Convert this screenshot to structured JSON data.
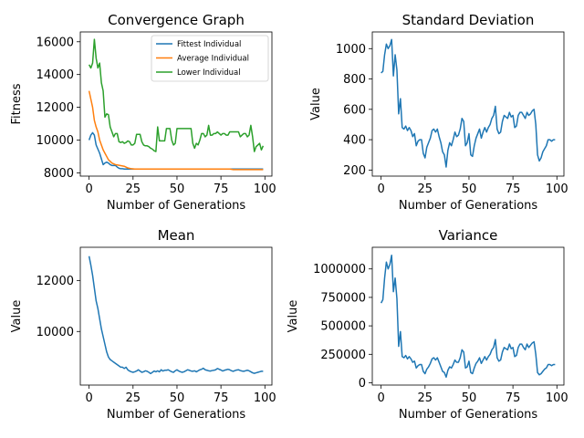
{
  "chart_data": [
    {
      "type": "line",
      "title": "Convergence Graph",
      "xlabel": "Number of Generations",
      "ylabel": "Fitness",
      "xlim": [
        -5,
        104
      ],
      "ylim": [
        7800,
        16600
      ],
      "xticks": [
        0,
        25,
        50,
        75,
        100
      ],
      "yticks": [
        8000,
        10000,
        12000,
        14000,
        16000
      ],
      "ytick_labels": [
        "8000",
        "10000",
        "12000",
        "14000",
        "16000"
      ],
      "legend_position": "top-right",
      "grid": false,
      "series": [
        {
          "name": "Fittest Individual",
          "color": "#1f77b4",
          "x": [
            0,
            1,
            2,
            3,
            4,
            5,
            6,
            7,
            8,
            9,
            10,
            11,
            12,
            13,
            14,
            15,
            16,
            17,
            18,
            19,
            20,
            22,
            25,
            30,
            40,
            50,
            60,
            70,
            80,
            90,
            99
          ],
          "values": [
            10000,
            10300,
            10450,
            10300,
            9700,
            9450,
            9200,
            8850,
            8500,
            8600,
            8650,
            8600,
            8500,
            8450,
            8450,
            8450,
            8350,
            8280,
            8250,
            8250,
            8230,
            8230,
            8230,
            8230,
            8230,
            8230,
            8230,
            8230,
            8230,
            8230,
            8230
          ]
        },
        {
          "name": "Average Individual",
          "color": "#ff7f0e",
          "x": [
            0,
            1,
            2,
            3,
            4,
            5,
            6,
            7,
            8,
            9,
            10,
            11,
            12,
            13,
            14,
            15,
            16,
            17,
            18,
            19,
            20,
            22,
            24,
            26,
            30,
            40,
            50,
            60,
            70,
            80,
            82,
            85,
            90,
            99
          ],
          "values": [
            13000,
            12500,
            12000,
            11200,
            10800,
            10500,
            10000,
            9700,
            9400,
            9200,
            9000,
            8800,
            8700,
            8600,
            8550,
            8500,
            8480,
            8460,
            8440,
            8420,
            8400,
            8300,
            8250,
            8230,
            8230,
            8230,
            8230,
            8230,
            8230,
            8230,
            8200,
            8200,
            8200,
            8200
          ]
        },
        {
          "name": "Lower Individual",
          "color": "#2ca02c",
          "x": [
            0,
            1,
            2,
            3,
            4,
            5,
            6,
            7,
            8,
            9,
            10,
            11,
            12,
            13,
            14,
            15,
            16,
            17,
            18,
            19,
            20,
            21,
            22,
            23,
            24,
            25,
            26,
            27,
            28,
            29,
            30,
            31,
            32,
            33,
            34,
            35,
            36,
            37,
            38,
            39,
            40,
            41,
            42,
            43,
            44,
            45,
            46,
            47,
            48,
            49,
            50,
            51,
            52,
            53,
            54,
            55,
            56,
            57,
            58,
            59,
            60,
            61,
            62,
            63,
            64,
            65,
            66,
            67,
            68,
            69,
            70,
            71,
            72,
            73,
            74,
            75,
            76,
            77,
            78,
            79,
            80,
            81,
            82,
            83,
            84,
            85,
            86,
            87,
            88,
            89,
            90,
            91,
            92,
            93,
            94,
            95,
            96,
            97,
            98,
            99
          ],
          "values": [
            14600,
            14400,
            14700,
            16150,
            15000,
            14400,
            14700,
            13500,
            13000,
            11400,
            11600,
            11550,
            10800,
            10500,
            10200,
            10400,
            10400,
            9900,
            9850,
            9900,
            9800,
            9850,
            9950,
            9900,
            9700,
            9700,
            9800,
            10350,
            10350,
            10350,
            9900,
            9700,
            9650,
            9650,
            9600,
            9500,
            9450,
            9350,
            9300,
            10800,
            9950,
            9950,
            9950,
            9950,
            10700,
            10700,
            10700,
            10000,
            9700,
            9800,
            10700,
            10700,
            10700,
            10700,
            10700,
            10700,
            10700,
            10700,
            10700,
            9800,
            9500,
            9800,
            9700,
            10000,
            10400,
            10400,
            10200,
            10300,
            10900,
            10300,
            10300,
            10400,
            10400,
            10500,
            10400,
            10300,
            10400,
            10400,
            10300,
            10300,
            10500,
            10500,
            10500,
            10500,
            10500,
            10500,
            10200,
            10300,
            10400,
            10400,
            10200,
            10300,
            10900,
            10200,
            9300,
            9600,
            9700,
            9800,
            9400,
            9650
          ]
        }
      ]
    },
    {
      "type": "line",
      "title": "Standard Deviation",
      "xlabel": "Number of Generations",
      "ylabel": "Value",
      "xlim": [
        -5,
        104
      ],
      "ylim": [
        160,
        1110
      ],
      "xticks": [
        0,
        25,
        50,
        75,
        100
      ],
      "yticks": [
        200,
        400,
        600,
        800,
        1000
      ],
      "ytick_labels": [
        "200",
        "400",
        "600",
        "800",
        "1000"
      ],
      "grid": false,
      "series": [
        {
          "color": "#1f77b4",
          "x": [
            0,
            1,
            2,
            3,
            4,
            5,
            6,
            7,
            8,
            9,
            10,
            11,
            12,
            13,
            14,
            15,
            16,
            17,
            18,
            19,
            20,
            21,
            22,
            23,
            24,
            25,
            26,
            27,
            28,
            29,
            30,
            31,
            32,
            33,
            34,
            35,
            36,
            37,
            38,
            39,
            40,
            41,
            42,
            43,
            44,
            45,
            46,
            47,
            48,
            49,
            50,
            51,
            52,
            53,
            54,
            55,
            56,
            57,
            58,
            59,
            60,
            61,
            62,
            63,
            64,
            65,
            66,
            67,
            68,
            69,
            70,
            71,
            72,
            73,
            74,
            75,
            76,
            77,
            78,
            79,
            80,
            81,
            82,
            83,
            84,
            85,
            86,
            87,
            88,
            89,
            90,
            91,
            92,
            93,
            94,
            95,
            96,
            97,
            98,
            99
          ],
          "values": [
            840,
            850,
            960,
            1030,
            1000,
            1020,
            1060,
            820,
            960,
            860,
            570,
            670,
            480,
            470,
            490,
            460,
            480,
            460,
            420,
            440,
            360,
            390,
            400,
            400,
            310,
            280,
            350,
            380,
            410,
            460,
            470,
            450,
            470,
            420,
            380,
            320,
            300,
            220,
            330,
            380,
            360,
            400,
            450,
            420,
            430,
            470,
            540,
            520,
            360,
            380,
            440,
            300,
            290,
            360,
            410,
            440,
            470,
            410,
            450,
            480,
            450,
            480,
            500,
            540,
            560,
            620,
            470,
            440,
            450,
            520,
            560,
            550,
            540,
            580,
            550,
            560,
            480,
            490,
            560,
            580,
            580,
            560,
            540,
            580,
            560,
            570,
            590,
            600,
            500,
            300,
            260,
            280,
            320,
            340,
            360,
            400,
            400,
            390,
            400,
            400
          ]
        }
      ]
    },
    {
      "type": "line",
      "title": "Mean",
      "xlabel": "Number of Generations",
      "ylabel": "Value",
      "xlim": [
        -5,
        104
      ],
      "ylim": [
        7900,
        13300
      ],
      "xticks": [
        0,
        25,
        50,
        75,
        100
      ],
      "yticks": [
        10000,
        12000
      ],
      "ytick_labels": [
        "10000",
        "12000"
      ],
      "grid": false,
      "series": [
        {
          "color": "#1f77b4",
          "x": [
            0,
            1,
            2,
            3,
            4,
            5,
            6,
            7,
            8,
            9,
            10,
            11,
            12,
            13,
            14,
            15,
            16,
            17,
            18,
            19,
            20,
            21,
            22,
            23,
            24,
            25,
            26,
            27,
            28,
            29,
            30,
            31,
            32,
            33,
            34,
            35,
            36,
            37,
            38,
            39,
            40,
            41,
            42,
            43,
            44,
            45,
            46,
            47,
            48,
            49,
            50,
            51,
            52,
            53,
            54,
            55,
            56,
            57,
            58,
            59,
            60,
            61,
            62,
            63,
            64,
            65,
            66,
            67,
            68,
            69,
            70,
            71,
            72,
            73,
            74,
            75,
            76,
            77,
            78,
            79,
            80,
            81,
            82,
            83,
            84,
            85,
            86,
            87,
            88,
            89,
            90,
            91,
            92,
            93,
            94,
            95,
            96,
            97,
            98,
            99
          ],
          "values": [
            12950,
            12600,
            12200,
            11700,
            11200,
            10900,
            10500,
            10100,
            9800,
            9500,
            9200,
            9000,
            8900,
            8850,
            8800,
            8750,
            8700,
            8650,
            8600,
            8600,
            8550,
            8600,
            8500,
            8450,
            8420,
            8400,
            8420,
            8450,
            8500,
            8450,
            8400,
            8420,
            8460,
            8440,
            8400,
            8350,
            8400,
            8450,
            8420,
            8460,
            8420,
            8500,
            8450,
            8480,
            8480,
            8500,
            8460,
            8420,
            8400,
            8460,
            8500,
            8450,
            8420,
            8400,
            8420,
            8460,
            8500,
            8480,
            8450,
            8440,
            8460,
            8420,
            8460,
            8500,
            8520,
            8560,
            8500,
            8480,
            8460,
            8450,
            8470,
            8480,
            8500,
            8550,
            8520,
            8490,
            8450,
            8480,
            8500,
            8520,
            8500,
            8460,
            8440,
            8470,
            8490,
            8500,
            8470,
            8450,
            8440,
            8460,
            8480,
            8460,
            8420,
            8380,
            8360,
            8380,
            8400,
            8420,
            8440,
            8440
          ]
        }
      ]
    },
    {
      "type": "line",
      "title": "Variance",
      "xlabel": "Number of Generations",
      "ylabel": "Value",
      "xlim": [
        -5,
        104
      ],
      "ylim": [
        -20000,
        1190000
      ],
      "xticks": [
        0,
        25,
        50,
        75,
        100
      ],
      "yticks": [
        0,
        250000,
        500000,
        750000,
        1000000
      ],
      "ytick_labels": [
        "0",
        "250000",
        "500000",
        "750000",
        "1000000"
      ],
      "grid": false,
      "series": [
        {
          "color": "#1f77b4",
          "x": [
            0,
            1,
            2,
            3,
            4,
            5,
            6,
            7,
            8,
            9,
            10,
            11,
            12,
            13,
            14,
            15,
            16,
            17,
            18,
            19,
            20,
            21,
            22,
            23,
            24,
            25,
            26,
            27,
            28,
            29,
            30,
            31,
            32,
            33,
            34,
            35,
            36,
            37,
            38,
            39,
            40,
            41,
            42,
            43,
            44,
            45,
            46,
            47,
            48,
            49,
            50,
            51,
            52,
            53,
            54,
            55,
            56,
            57,
            58,
            59,
            60,
            61,
            62,
            63,
            64,
            65,
            66,
            67,
            68,
            69,
            70,
            71,
            72,
            73,
            74,
            75,
            76,
            77,
            78,
            79,
            80,
            81,
            82,
            83,
            84,
            85,
            86,
            87,
            88,
            89,
            90,
            91,
            92,
            93,
            94,
            95,
            96,
            97,
            98,
            99
          ],
          "values": [
            700000,
            730000,
            920000,
            1060000,
            1000000,
            1040000,
            1120000,
            800000,
            920000,
            740000,
            320000,
            450000,
            230000,
            220000,
            240000,
            210000,
            230000,
            210000,
            180000,
            190000,
            130000,
            150000,
            160000,
            160000,
            100000,
            80000,
            120000,
            140000,
            170000,
            210000,
            220000,
            200000,
            220000,
            180000,
            140000,
            100000,
            90000,
            50000,
            110000,
            140000,
            130000,
            160000,
            200000,
            180000,
            180000,
            220000,
            290000,
            270000,
            130000,
            140000,
            190000,
            90000,
            80000,
            130000,
            170000,
            190000,
            220000,
            170000,
            200000,
            230000,
            200000,
            230000,
            250000,
            290000,
            310000,
            380000,
            220000,
            190000,
            200000,
            270000,
            310000,
            300000,
            290000,
            340000,
            300000,
            310000,
            230000,
            240000,
            310000,
            340000,
            340000,
            310000,
            290000,
            340000,
            310000,
            330000,
            350000,
            360000,
            250000,
            90000,
            70000,
            80000,
            100000,
            120000,
            130000,
            160000,
            160000,
            150000,
            160000,
            160000
          ]
        }
      ]
    }
  ]
}
